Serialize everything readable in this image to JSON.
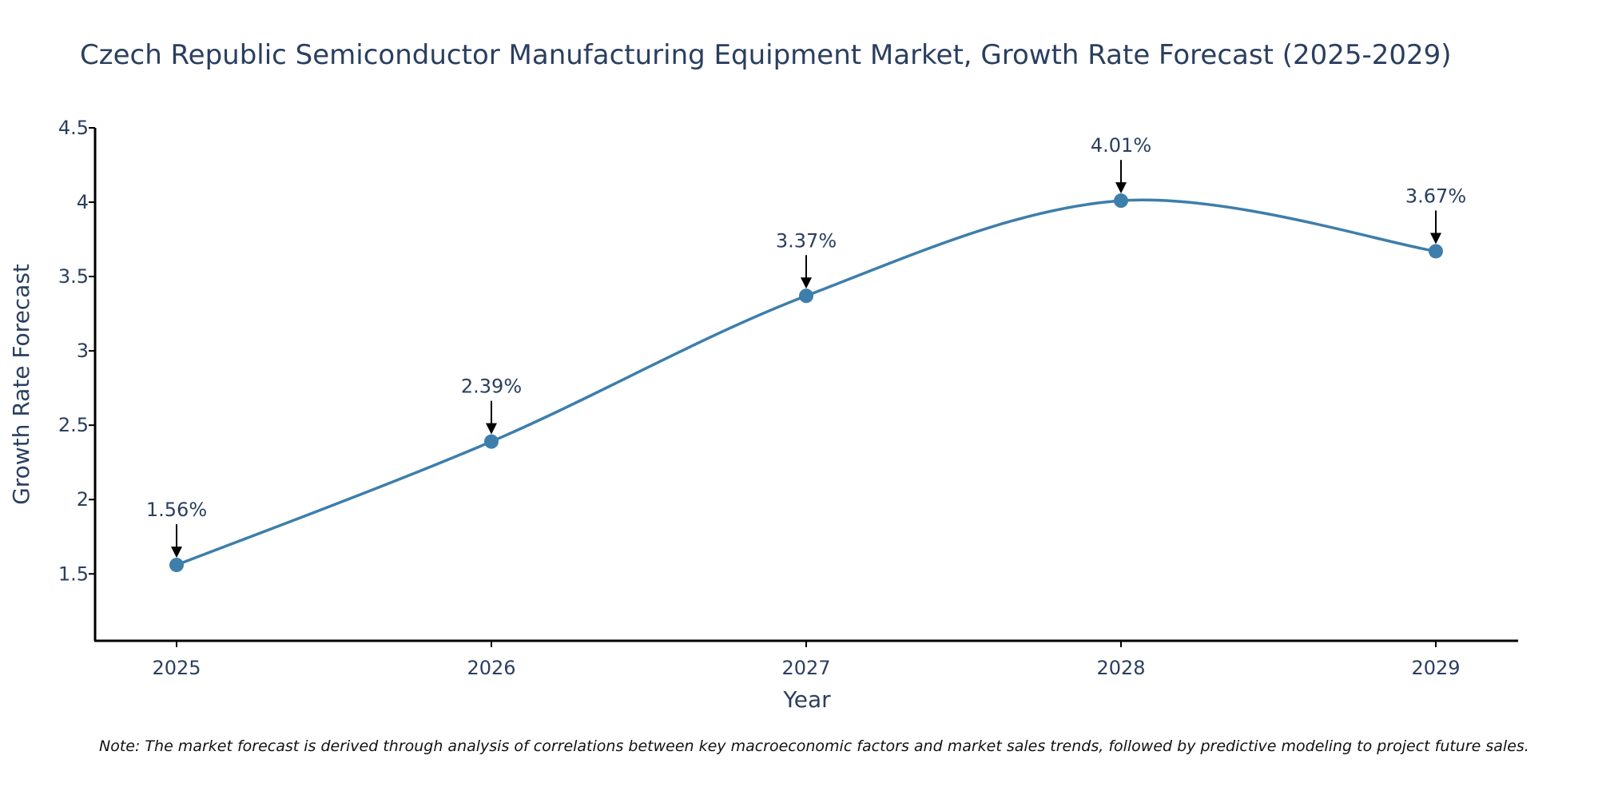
{
  "chart_data": {
    "type": "line",
    "title": "Czech Republic Semiconductor Manufacturing Equipment Market, Growth Rate Forecast (2025-2029)",
    "xlabel": "Year",
    "ylabel": "Growth Rate Forecast",
    "categories": [
      "2025",
      "2026",
      "2027",
      "2028",
      "2029"
    ],
    "series": [
      {
        "name": "Growth Rate Forecast",
        "values": [
          1.56,
          2.39,
          3.37,
          4.01,
          3.67
        ],
        "labels": [
          "1.56%",
          "2.39%",
          "3.37%",
          "4.01%",
          "3.67%"
        ],
        "color": "#3d7eab"
      }
    ],
    "ylim": [
      1.05,
      4.5
    ],
    "yticks": [
      1.5,
      2,
      2.5,
      3,
      3.5,
      4,
      4.5
    ],
    "ytick_labels": [
      "1.5",
      "2",
      "2.5",
      "3",
      "3.5",
      "4",
      "4.5"
    ],
    "grid": false,
    "line_shape": "spline"
  },
  "note": "Note: The market forecast is derived through analysis of correlations between key macroeconomic factors and market sales trends, followed by predictive modeling to project future sales.",
  "colors": {
    "line": "#3d7eab",
    "marker": "#3d7eab",
    "axis": "#000000",
    "text": "#2a3f5f",
    "arrow": "#000000"
  }
}
